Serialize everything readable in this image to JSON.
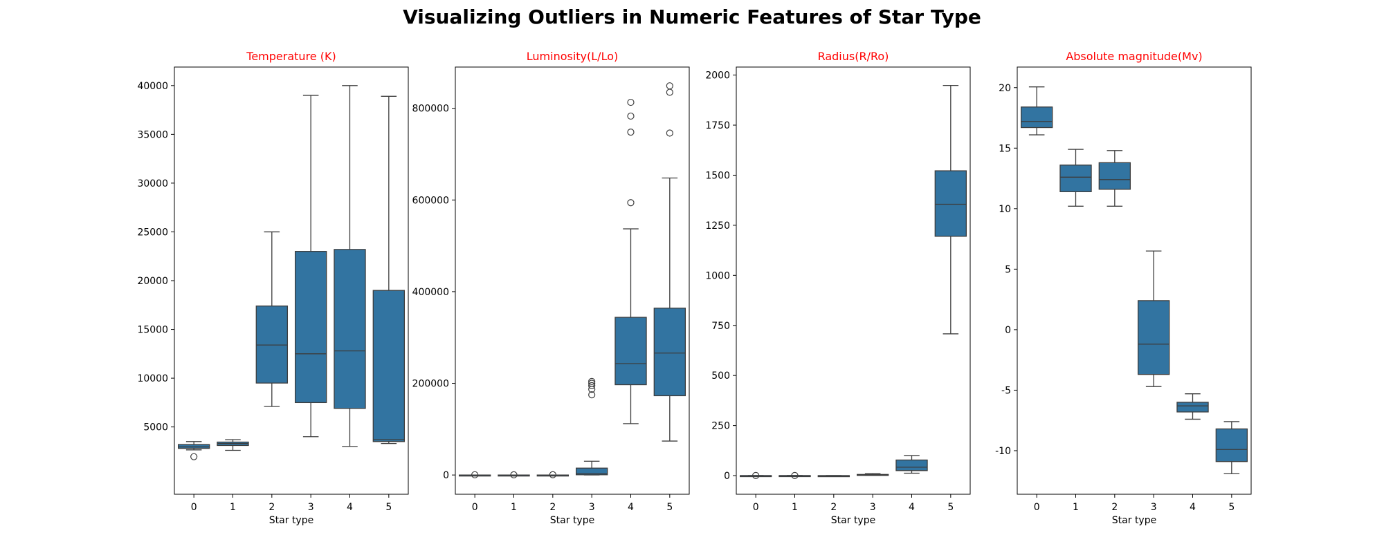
{
  "suptitle": "Visualizing Outliers in Numeric Features of Star Type",
  "colors": {
    "box": "#3274a1",
    "line": "#3d3d3d",
    "title": "#ff0000",
    "frame": "#000000"
  },
  "chart_data": [
    {
      "type": "box",
      "title": "Temperature (K)",
      "xlabel": "Star type",
      "ylabel": "",
      "categories": [
        "0",
        "1",
        "2",
        "3",
        "4",
        "5"
      ],
      "ylim": [
        -1900,
        41900
      ],
      "yticks": [
        5000,
        10000,
        15000,
        20000,
        25000,
        30000,
        35000,
        40000
      ],
      "boxes": [
        {
          "whislo": 2650,
          "q1": 2800,
          "med": 2950,
          "q3": 3200,
          "whishi": 3500,
          "fliers": [
            1950
          ]
        },
        {
          "whislo": 2600,
          "q1": 3100,
          "med": 3300,
          "q3": 3450,
          "whishi": 3700,
          "fliers": []
        },
        {
          "whislo": 7100,
          "q1": 9500,
          "med": 13400,
          "q3": 17400,
          "whishi": 25000,
          "fliers": []
        },
        {
          "whislo": 4000,
          "q1": 7500,
          "med": 12500,
          "q3": 23000,
          "whishi": 39000,
          "fliers": []
        },
        {
          "whislo": 3000,
          "q1": 6900,
          "med": 12800,
          "q3": 23200,
          "whishi": 40000,
          "fliers": []
        },
        {
          "whislo": 3300,
          "q1": 3500,
          "med": 3700,
          "q3": 19000,
          "whishi": 38900,
          "fliers": []
        }
      ]
    },
    {
      "type": "box",
      "title": "Luminosity(L/Lo)",
      "xlabel": "Star type",
      "ylabel": "",
      "categories": [
        "0",
        "1",
        "2",
        "3",
        "4",
        "5"
      ],
      "ylim": [
        -42000,
        890000
      ],
      "yticks": [
        0,
        200000,
        400000,
        600000,
        800000
      ],
      "boxes": [
        {
          "whislo": 0,
          "q1": 0,
          "med": 0,
          "q3": 0.01,
          "whishi": 0.02,
          "fliers": [
            500
          ]
        },
        {
          "whislo": 0,
          "q1": 0,
          "med": 0,
          "q3": 0.01,
          "whishi": 0.02,
          "fliers": [
            400
          ]
        },
        {
          "whislo": 0,
          "q1": 0,
          "med": 0,
          "q3": 0.01,
          "whishi": 0.02,
          "fliers": [
            600
          ]
        },
        {
          "whislo": 0,
          "q1": 500,
          "med": 3000,
          "q3": 15000,
          "whishi": 30000,
          "fliers": [
            175000,
            187000,
            195000,
            200000,
            204000
          ]
        },
        {
          "whislo": 112000,
          "q1": 197000,
          "med": 243000,
          "q3": 344000,
          "whishi": 537000,
          "fliers": [
            594000,
            748000,
            783000,
            813000
          ]
        },
        {
          "whislo": 74000,
          "q1": 173000,
          "med": 266000,
          "q3": 364000,
          "whishi": 648000,
          "fliers": [
            746000,
            835000,
            849000
          ]
        }
      ]
    },
    {
      "type": "box",
      "title": "Radius(R/Ro)",
      "xlabel": "Star type",
      "ylabel": "",
      "categories": [
        "0",
        "1",
        "2",
        "3",
        "4",
        "5"
      ],
      "ylim": [
        -93,
        2040
      ],
      "yticks": [
        0,
        250,
        500,
        750,
        1000,
        1250,
        1500,
        1750,
        2000
      ],
      "boxes": [
        {
          "whislo": 0.1,
          "q1": 0.12,
          "med": 0.15,
          "q3": 0.2,
          "whishi": 0.3,
          "fliers": [
            0.5
          ]
        },
        {
          "whislo": 0.1,
          "q1": 0.15,
          "med": 0.2,
          "q3": 0.3,
          "whishi": 0.4,
          "fliers": [
            0.6
          ]
        },
        {
          "whislo": 0.008,
          "q1": 0.009,
          "med": 0.01,
          "q3": 0.012,
          "whishi": 0.015,
          "fliers": []
        },
        {
          "whislo": 0.8,
          "q1": 1.5,
          "med": 3,
          "q3": 6,
          "whishi": 10,
          "fliers": []
        },
        {
          "whislo": 12,
          "q1": 25,
          "med": 42,
          "q3": 78,
          "whishi": 100,
          "fliers": []
        },
        {
          "whislo": 708,
          "q1": 1195,
          "med": 1355,
          "q3": 1522,
          "whishi": 1948,
          "fliers": []
        }
      ]
    },
    {
      "type": "box",
      "title": "Absolute magnitude(Mv)",
      "xlabel": "Star type",
      "ylabel": "",
      "categories": [
        "0",
        "1",
        "2",
        "3",
        "4",
        "5"
      ],
      "ylim": [
        -13.6,
        21.7
      ],
      "yticks": [
        -10,
        -5,
        0,
        5,
        10,
        15,
        20
      ],
      "boxes": [
        {
          "whislo": 16.1,
          "q1": 16.7,
          "med": 17.2,
          "q3": 18.4,
          "whishi": 20.06,
          "fliers": []
        },
        {
          "whislo": 10.2,
          "q1": 11.4,
          "med": 12.6,
          "q3": 13.6,
          "whishi": 14.9,
          "fliers": []
        },
        {
          "whislo": 10.2,
          "q1": 11.6,
          "med": 12.4,
          "q3": 13.8,
          "whishi": 14.8,
          "fliers": []
        },
        {
          "whislo": -4.7,
          "q1": -3.7,
          "med": -1.2,
          "q3": 2.4,
          "whishi": 6.5,
          "fliers": []
        },
        {
          "whislo": -7.4,
          "q1": -6.8,
          "med": -6.3,
          "q3": -6.0,
          "whishi": -5.3,
          "fliers": []
        },
        {
          "whislo": -11.9,
          "q1": -10.9,
          "med": -9.9,
          "q3": -8.2,
          "whishi": -7.6,
          "fliers": []
        }
      ]
    }
  ]
}
